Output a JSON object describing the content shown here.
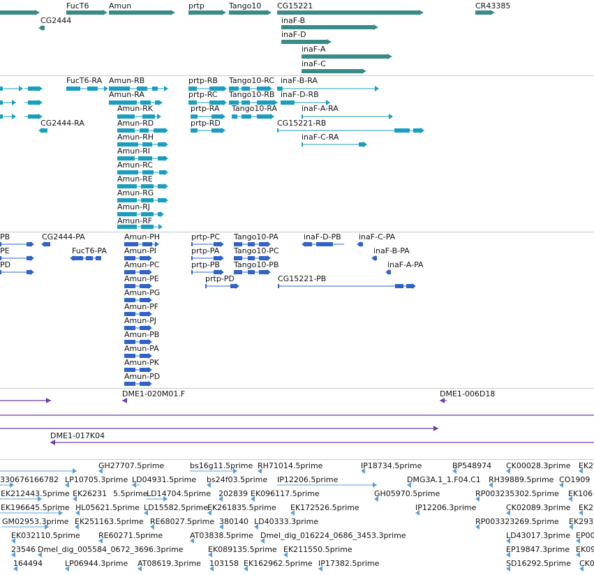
{
  "tracks": {
    "genes": {
      "color": "#3a8a8a",
      "features": [
        {
          "label": "FucT6"
        },
        {
          "label": "Amun"
        },
        {
          "label": "prtp"
        },
        {
          "label": "Tango10"
        },
        {
          "label": "CG15221"
        },
        {
          "label": "CR43385"
        },
        {
          "label": "CG2444"
        },
        {
          "label": "inaF-B"
        },
        {
          "label": "inaF-D"
        },
        {
          "label": "inaF-A"
        },
        {
          "label": "inaF-C"
        }
      ]
    },
    "transcripts": {
      "color": "#1a9ec0",
      "features": [
        {
          "label": "FucT6-RA"
        },
        {
          "label": "Amun-RB"
        },
        {
          "label": "prtp-RB"
        },
        {
          "label": "Tango10-RC"
        },
        {
          "label": "inaF-B-RA"
        },
        {
          "label": "Amun-RA"
        },
        {
          "label": "prtp-RC"
        },
        {
          "label": "Tango10-RB"
        },
        {
          "label": "inaF-D-RB"
        },
        {
          "label": "Amun-RK"
        },
        {
          "label": "prtp-RA"
        },
        {
          "label": "Tango10-RA"
        },
        {
          "label": "inaF-A-RA"
        },
        {
          "label": "CG2444-RA"
        },
        {
          "label": "Amun-RD"
        },
        {
          "label": "prtp-RD"
        },
        {
          "label": "CG15221-RB"
        },
        {
          "label": "Amun-RH"
        },
        {
          "label": "inaF-C-RA"
        },
        {
          "label": "Amun-RI"
        },
        {
          "label": "Amun-RC"
        },
        {
          "label": "Amun-RE"
        },
        {
          "label": "Amun-RG"
        },
        {
          "label": "Amun-RJ"
        },
        {
          "label": "Amun-RF"
        }
      ]
    },
    "proteins": {
      "color": "#2f63c8",
      "features": [
        {
          "label": "PB"
        },
        {
          "label": "CG2444-PA"
        },
        {
          "label": "Amun-PH"
        },
        {
          "label": "prtp-PC"
        },
        {
          "label": "Tango10-PA"
        },
        {
          "label": "inaF-D-PB"
        },
        {
          "label": "inaF-C-PA"
        },
        {
          "label": "PE"
        },
        {
          "label": "FucT6-PA"
        },
        {
          "label": "Amun-PI"
        },
        {
          "label": "prtp-PA"
        },
        {
          "label": "Tango10-PC"
        },
        {
          "label": "inaF-B-PA"
        },
        {
          "label": "PD"
        },
        {
          "label": "Amun-PC"
        },
        {
          "label": "prtp-PB"
        },
        {
          "label": "Tango10-PB"
        },
        {
          "label": "inaF-A-PA"
        },
        {
          "label": "Amun-PE"
        },
        {
          "label": "prtp-PD"
        },
        {
          "label": "CG15221-PB"
        },
        {
          "label": "Amun-PG"
        },
        {
          "label": "Amun-PF"
        },
        {
          "label": "Amun-PJ"
        },
        {
          "label": "Amun-PB"
        },
        {
          "label": "Amun-PA"
        },
        {
          "label": "Amun-PK"
        },
        {
          "label": "Amun-PD"
        }
      ]
    },
    "clones": {
      "color": "#6a3da8",
      "features": [
        {
          "label": "DME1-020M01.F"
        },
        {
          "label": "DME1-006D18"
        },
        {
          "label": "DME1-017K04"
        }
      ]
    },
    "ests": {
      "color": "#5aa0d8",
      "features": [
        {
          "label": "GH27707.5prime"
        },
        {
          "label": "bs16g11.5prime"
        },
        {
          "label": "RH71014.5prime"
        },
        {
          "label": "IP18734.5prime"
        },
        {
          "label": "BP548974"
        },
        {
          "label": "CK00028.3prime"
        },
        {
          "label": "EK2"
        },
        {
          "label": "330676166782"
        },
        {
          "label": "LP10705.3prime"
        },
        {
          "label": "LD04931.5prime"
        },
        {
          "label": "bs24f03.5prime"
        },
        {
          "label": "IP12206.5prime"
        },
        {
          "label": "DMG3A.1_1.F04.C1"
        },
        {
          "label": "RH39889.5prime"
        },
        {
          "label": "CO1909"
        },
        {
          "label": "EK212443.5prime"
        },
        {
          "label": "EK26231"
        },
        {
          "label": "5.5prime"
        },
        {
          "label": "LD14704.5prime"
        },
        {
          "label": "202839"
        },
        {
          "label": "EK096117.5prime"
        },
        {
          "label": "GH05970.5prime"
        },
        {
          "label": "RP003235302.5prime"
        },
        {
          "label": "EK106"
        },
        {
          "label": "EK196645.5prime"
        },
        {
          "label": "HL05621.5prime"
        },
        {
          "label": "LD15582.5prime"
        },
        {
          "label": "EK261835.5prime"
        },
        {
          "label": "EK172526.5prime"
        },
        {
          "label": "IP12206.3prime"
        },
        {
          "label": "CK02089.3prime"
        },
        {
          "label": "EK2"
        },
        {
          "label": "GM02953.3prime"
        },
        {
          "label": "EK251163.5prime"
        },
        {
          "label": "RE68027.5prime"
        },
        {
          "label": "380140"
        },
        {
          "label": "LD40333.3prime"
        },
        {
          "label": "RP003323269.5prime"
        },
        {
          "label": "EK293"
        },
        {
          "label": "EK032110.5prime"
        },
        {
          "label": "RE60271.5prime"
        },
        {
          "label": "AT03838.5prime"
        },
        {
          "label": "Dmel_dig_016224_0686_3453.3prime"
        },
        {
          "label": "LD43017.3prime"
        },
        {
          "label": "EP00"
        },
        {
          "label": "23546"
        },
        {
          "label": "Dmel_dig_005584_0672_3696.3prime"
        },
        {
          "label": "EK089135.5prime"
        },
        {
          "label": "EK211550.5prime"
        },
        {
          "label": "EP19847.3prime"
        },
        {
          "label": "EK09"
        },
        {
          "label": "164494"
        },
        {
          "label": "LP06944.3prime"
        },
        {
          "label": "AT08619.3prime"
        },
        {
          "label": "103158"
        },
        {
          "label": "EK162962.5prime"
        },
        {
          "label": "IP17382.5prime"
        },
        {
          "label": "SD16292.5prime"
        },
        {
          "label": "CK0"
        }
      ]
    }
  }
}
